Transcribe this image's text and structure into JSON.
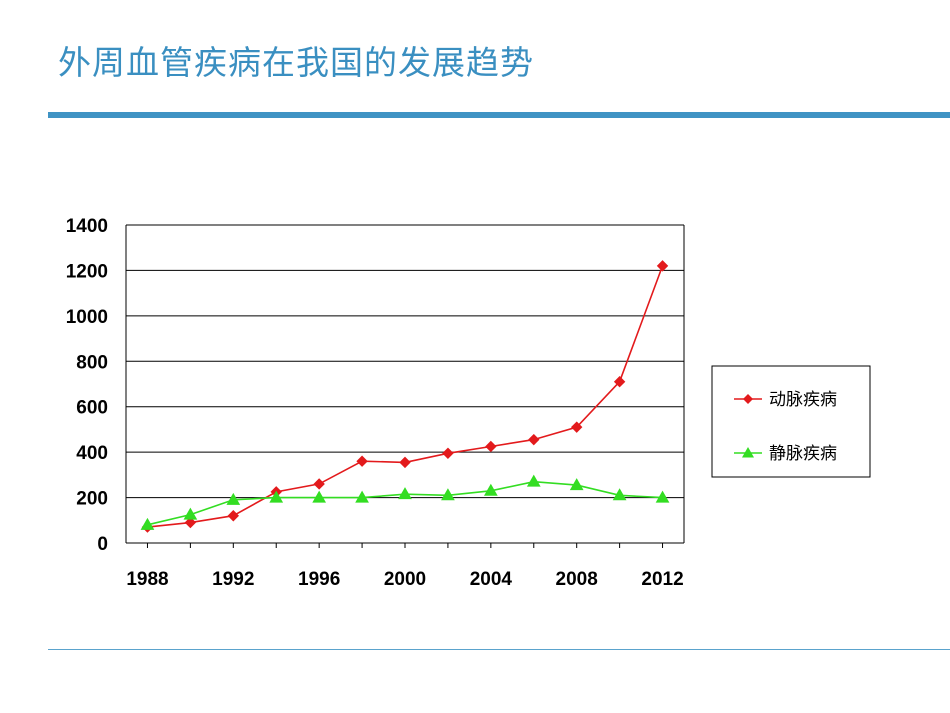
{
  "slide": {
    "title": "外周血管疾病在我国的发展趋势"
  },
  "chart_data": {
    "type": "line",
    "title": "",
    "xlabel": "",
    "ylabel": "",
    "x": [
      1988,
      1990,
      1992,
      1994,
      1996,
      1998,
      2000,
      2002,
      2004,
      2006,
      2008,
      2010,
      2012
    ],
    "x_tick_labels": [
      "1988",
      "1992",
      "1996",
      "2000",
      "2004",
      "2008",
      "2012"
    ],
    "y_tick_labels": [
      "0",
      "200",
      "400",
      "600",
      "800",
      "1000",
      "1200",
      "1400"
    ],
    "ylim": [
      0,
      1400
    ],
    "xlim": [
      1987,
      2013
    ],
    "grid": "horizontal",
    "legend_position": "right",
    "series": [
      {
        "name": "动脉疾病",
        "color": "#e31a1c",
        "marker": "diamond",
        "values": [
          70,
          90,
          120,
          225,
          260,
          360,
          355,
          395,
          425,
          455,
          510,
          710,
          1220
        ]
      },
      {
        "name": "静脉疾病",
        "color": "#33dd22",
        "marker": "triangle",
        "values": [
          80,
          125,
          190,
          200,
          200,
          200,
          215,
          210,
          230,
          270,
          255,
          210,
          200
        ]
      }
    ]
  }
}
